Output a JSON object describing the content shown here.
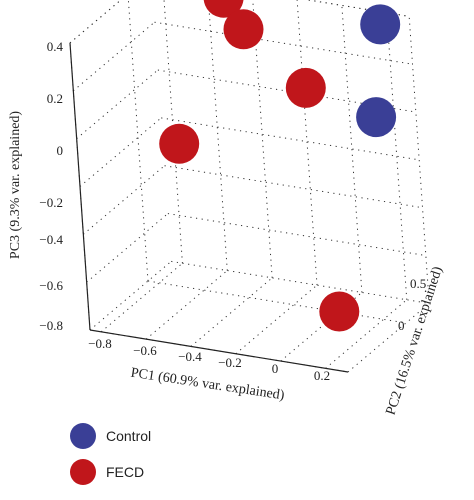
{
  "chart_data": {
    "type": "scatter",
    "xlabel": "PC1 (60.9% var. explained)",
    "ylabel": "PC2 (16.5% var. explained)",
    "zlabel": "PC3 (9.3% var. explained)",
    "x_ticks": [
      "−0.8",
      "−0.6",
      "−0.4",
      "−0.2",
      "0",
      "0.2"
    ],
    "y_ticks": [
      "0",
      "0.5"
    ],
    "z_ticks": [
      "0.4",
      "0.2",
      "0",
      "−0.2",
      "−0.4",
      "−0.6",
      "−0.8"
    ],
    "xlim": [
      -0.85,
      0.3
    ],
    "ylim": [
      -0.3,
      0.7
    ],
    "zlim": [
      -0.8,
      0.4
    ],
    "grid": true,
    "legend_position": "bottom-left",
    "series": [
      {
        "name": "Control",
        "color": "#3a3f96",
        "points": [
          {
            "x": 0.25,
            "y": 0.55,
            "z": 0.42
          },
          {
            "x": 0.23,
            "y": 0.5,
            "z": 0.05
          }
        ]
      },
      {
        "name": "FECD",
        "color": "#c0161b",
        "points": [
          {
            "x": -0.42,
            "y": 0.5,
            "z": 0.45
          },
          {
            "x": -0.34,
            "y": 0.5,
            "z": 0.33
          },
          {
            "x": -0.05,
            "y": 0.45,
            "z": 0.15
          },
          {
            "x": -0.5,
            "y": 0.2,
            "z": -0.05
          },
          {
            "x": 0.28,
            "y": 0.0,
            "z": -0.55
          }
        ]
      }
    ]
  }
}
